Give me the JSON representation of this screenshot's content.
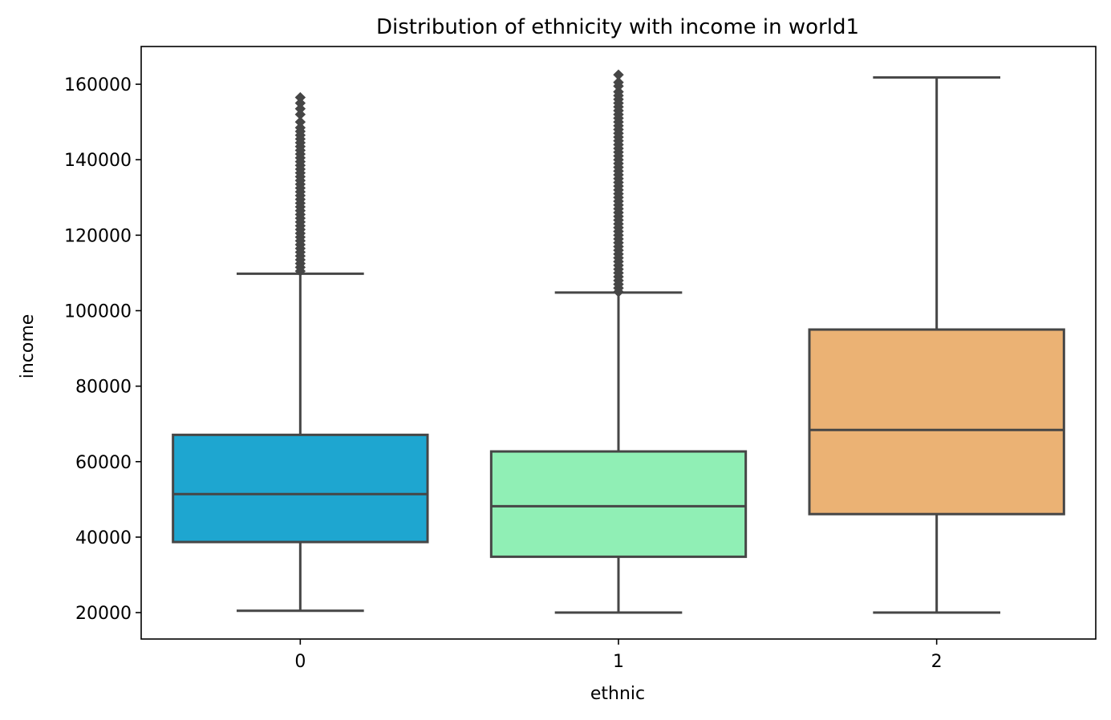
{
  "chart_data": {
    "type": "box",
    "title": "Distribution of ethnicity with income in world1",
    "xlabel": "ethnic",
    "ylabel": "income",
    "ylim": [
      13000,
      170000
    ],
    "yticks": [
      20000,
      40000,
      60000,
      80000,
      100000,
      120000,
      140000,
      160000
    ],
    "grid": false,
    "categories": [
      "0",
      "1",
      "2"
    ],
    "boxes": [
      {
        "category": "0",
        "color": "#1EA6D0",
        "whisker_low": 20500,
        "q1": 38700,
        "median": 51400,
        "q3": 67100,
        "whisker_high": 109800,
        "outliers": [
          110500,
          111500,
          112500,
          113500,
          114500,
          115500,
          116500,
          117500,
          118500,
          119500,
          120500,
          121500,
          122500,
          123500,
          124500,
          125500,
          126500,
          127500,
          128500,
          129500,
          130500,
          131500,
          132500,
          133500,
          134500,
          135500,
          136500,
          137500,
          138500,
          139500,
          140500,
          141500,
          142500,
          143500,
          144500,
          145500,
          146500,
          147500,
          148500,
          150000,
          152000,
          153500,
          155000,
          156500
        ]
      },
      {
        "category": "1",
        "color": "#90EFB5",
        "whisker_low": 20000,
        "q1": 34800,
        "median": 48200,
        "q3": 62700,
        "whisker_high": 104800,
        "outliers": [
          105000,
          106000,
          107000,
          108000,
          109000,
          110000,
          111000,
          112000,
          113000,
          114000,
          115000,
          116000,
          117000,
          118000,
          119000,
          120000,
          121000,
          122000,
          123000,
          124000,
          125000,
          126000,
          127000,
          128000,
          129000,
          130000,
          131000,
          132000,
          133000,
          134000,
          135000,
          136000,
          137000,
          138000,
          139000,
          140000,
          141000,
          142000,
          143000,
          144000,
          145000,
          146000,
          147000,
          148000,
          149000,
          150000,
          151000,
          152000,
          153000,
          154000,
          155000,
          156000,
          157000,
          158000,
          159500,
          160500,
          162500
        ]
      },
      {
        "category": "2",
        "color": "#EBB274",
        "whisker_low": 20000,
        "q1": 46100,
        "median": 68400,
        "q3": 95000,
        "whisker_high": 161800,
        "outliers": []
      }
    ]
  }
}
